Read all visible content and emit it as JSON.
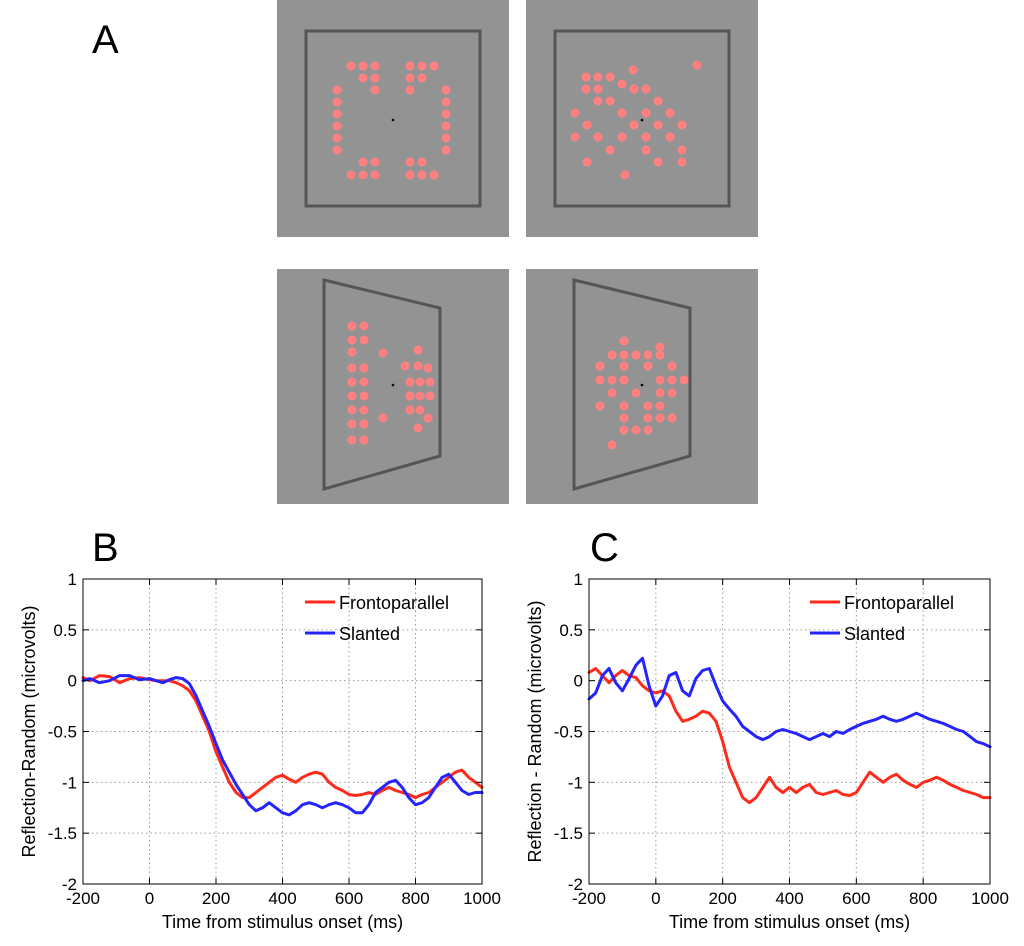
{
  "panels": {
    "a_label": "A",
    "b_label": "B",
    "c_label": "C"
  },
  "stimuli": {
    "background_color": "#939393",
    "frame_color": "#555555",
    "dot_color": "#ff8080",
    "fixation_color": "#000000",
    "items": [
      {
        "name": "frontoparallel-reflection",
        "orientation": "frontal",
        "symmetry": "reflection"
      },
      {
        "name": "frontoparallel-random",
        "orientation": "frontal",
        "symmetry": "random"
      },
      {
        "name": "slanted-reflection",
        "orientation": "slanted",
        "symmetry": "reflection"
      },
      {
        "name": "slanted-random",
        "orientation": "slanted",
        "symmetry": "random"
      }
    ]
  },
  "chart_data": [
    {
      "panel": "B",
      "type": "line",
      "xlabel": "Time from stimulus onset (ms)",
      "ylabel": "Reflection-Random (microvolts)",
      "xlim": [
        -200,
        1000
      ],
      "ylim": [
        -2,
        1
      ],
      "xticks": [
        -200,
        0,
        200,
        400,
        600,
        800,
        1000
      ],
      "yticks": [
        1,
        0.5,
        0,
        -0.5,
        -1,
        -1.5,
        -2
      ],
      "xtick_labels": [
        "-200",
        "0",
        "200",
        "400",
        "600",
        "800",
        "1000"
      ],
      "ytick_labels": [
        "1",
        "0.5",
        "0",
        "-0.5",
        "-1",
        "-1.5",
        "-2"
      ],
      "grid": true,
      "legend_position": "top-right",
      "series": [
        {
          "name": "Frontoparallel",
          "color": "#ff2a1a",
          "x": [
            -200,
            -180,
            -150,
            -120,
            -90,
            -60,
            -30,
            0,
            20,
            40,
            60,
            80,
            100,
            120,
            140,
            160,
            180,
            200,
            220,
            240,
            260,
            280,
            300,
            320,
            340,
            360,
            380,
            400,
            420,
            440,
            460,
            480,
            500,
            520,
            540,
            560,
            580,
            600,
            620,
            640,
            660,
            680,
            700,
            720,
            740,
            760,
            780,
            800,
            820,
            840,
            860,
            880,
            900,
            920,
            940,
            960,
            980,
            1000
          ],
          "y": [
            0.03,
            0.0,
            0.05,
            0.04,
            -0.02,
            0.02,
            0.03,
            0.01,
            0.0,
            0.0,
            0.0,
            -0.02,
            -0.05,
            -0.1,
            -0.2,
            -0.35,
            -0.5,
            -0.7,
            -0.85,
            -1.0,
            -1.1,
            -1.15,
            -1.15,
            -1.1,
            -1.05,
            -1.0,
            -0.95,
            -0.93,
            -0.97,
            -1.0,
            -0.95,
            -0.92,
            -0.9,
            -0.92,
            -1.0,
            -1.05,
            -1.08,
            -1.12,
            -1.13,
            -1.12,
            -1.1,
            -1.12,
            -1.08,
            -1.05,
            -1.08,
            -1.1,
            -1.12,
            -1.15,
            -1.12,
            -1.1,
            -1.05,
            -1.0,
            -0.95,
            -0.9,
            -0.88,
            -0.95,
            -1.0,
            -1.05
          ]
        },
        {
          "name": "Slanted",
          "color": "#2424ff",
          "x": [
            -200,
            -180,
            -150,
            -120,
            -90,
            -60,
            -30,
            0,
            20,
            40,
            60,
            80,
            100,
            120,
            140,
            160,
            180,
            200,
            220,
            240,
            260,
            280,
            300,
            320,
            340,
            360,
            380,
            400,
            420,
            440,
            460,
            480,
            500,
            520,
            540,
            560,
            580,
            600,
            620,
            640,
            660,
            680,
            700,
            720,
            740,
            760,
            780,
            800,
            820,
            840,
            860,
            880,
            900,
            920,
            940,
            960,
            980,
            1000
          ],
          "y": [
            0.0,
            0.02,
            -0.02,
            0.0,
            0.05,
            0.05,
            0.01,
            0.02,
            0.0,
            -0.02,
            0.01,
            0.03,
            0.02,
            -0.03,
            -0.15,
            -0.3,
            -0.45,
            -0.62,
            -0.78,
            -0.9,
            -1.02,
            -1.12,
            -1.22,
            -1.28,
            -1.25,
            -1.2,
            -1.25,
            -1.3,
            -1.32,
            -1.28,
            -1.22,
            -1.2,
            -1.22,
            -1.25,
            -1.22,
            -1.2,
            -1.22,
            -1.25,
            -1.3,
            -1.3,
            -1.22,
            -1.1,
            -1.05,
            -1.0,
            -0.98,
            -1.05,
            -1.15,
            -1.22,
            -1.2,
            -1.15,
            -1.05,
            -0.95,
            -0.92,
            -1.0,
            -1.08,
            -1.12,
            -1.1,
            -1.1
          ]
        }
      ]
    },
    {
      "panel": "C",
      "type": "line",
      "xlabel": "Time from stimulus onset (ms)",
      "ylabel": "Reflection - Random (microvolts)",
      "xlim": [
        -200,
        1000
      ],
      "ylim": [
        -2,
        1
      ],
      "xticks": [
        -200,
        0,
        200,
        400,
        600,
        800,
        1000
      ],
      "yticks": [
        1,
        0.5,
        0,
        -0.5,
        -1,
        -1.5,
        -2
      ],
      "xtick_labels": [
        "-200",
        "0",
        "200",
        "400",
        "600",
        "800",
        "1000"
      ],
      "ytick_labels": [
        "1",
        "0.5",
        "0",
        "-0.5",
        "-1",
        "-1.5",
        "-2"
      ],
      "grid": true,
      "legend_position": "top-right",
      "series": [
        {
          "name": "Frontoparallel",
          "color": "#ff2a1a",
          "x": [
            -200,
            -180,
            -160,
            -140,
            -120,
            -100,
            -80,
            -60,
            -40,
            -20,
            0,
            20,
            40,
            60,
            80,
            100,
            120,
            140,
            160,
            180,
            200,
            220,
            240,
            260,
            280,
            300,
            320,
            340,
            360,
            380,
            400,
            420,
            440,
            460,
            480,
            500,
            520,
            540,
            560,
            580,
            600,
            620,
            640,
            660,
            680,
            700,
            720,
            740,
            760,
            780,
            800,
            820,
            840,
            860,
            880,
            900,
            920,
            940,
            960,
            980,
            1000
          ],
          "y": [
            0.08,
            0.12,
            0.05,
            -0.02,
            0.05,
            0.1,
            0.05,
            0.03,
            -0.05,
            -0.1,
            -0.12,
            -0.1,
            -0.15,
            -0.3,
            -0.4,
            -0.38,
            -0.35,
            -0.3,
            -0.32,
            -0.4,
            -0.6,
            -0.85,
            -1.0,
            -1.15,
            -1.2,
            -1.15,
            -1.05,
            -0.95,
            -1.05,
            -1.1,
            -1.05,
            -1.1,
            -1.05,
            -1.02,
            -1.1,
            -1.12,
            -1.1,
            -1.08,
            -1.12,
            -1.13,
            -1.1,
            -1.0,
            -0.9,
            -0.95,
            -1.0,
            -0.95,
            -0.92,
            -0.98,
            -1.02,
            -1.05,
            -1.0,
            -0.98,
            -0.95,
            -0.98,
            -1.02,
            -1.05,
            -1.08,
            -1.1,
            -1.12,
            -1.15,
            -1.15
          ]
        },
        {
          "name": "Slanted",
          "color": "#2424ff",
          "x": [
            -200,
            -180,
            -160,
            -140,
            -120,
            -100,
            -80,
            -60,
            -40,
            -20,
            0,
            20,
            40,
            60,
            80,
            100,
            120,
            140,
            160,
            180,
            200,
            220,
            240,
            260,
            280,
            300,
            320,
            340,
            360,
            380,
            400,
            420,
            440,
            460,
            480,
            500,
            520,
            540,
            560,
            580,
            600,
            620,
            640,
            660,
            680,
            700,
            720,
            740,
            760,
            780,
            800,
            820,
            840,
            860,
            880,
            900,
            920,
            940,
            960,
            980,
            1000
          ],
          "y": [
            -0.18,
            -0.12,
            0.05,
            0.12,
            -0.02,
            -0.1,
            0.02,
            0.15,
            0.22,
            -0.05,
            -0.25,
            -0.15,
            0.05,
            0.08,
            -0.1,
            -0.15,
            0.02,
            0.1,
            0.12,
            -0.05,
            -0.2,
            -0.28,
            -0.35,
            -0.45,
            -0.5,
            -0.55,
            -0.58,
            -0.55,
            -0.5,
            -0.48,
            -0.5,
            -0.52,
            -0.55,
            -0.58,
            -0.55,
            -0.52,
            -0.55,
            -0.5,
            -0.52,
            -0.48,
            -0.45,
            -0.42,
            -0.4,
            -0.38,
            -0.35,
            -0.38,
            -0.4,
            -0.38,
            -0.35,
            -0.32,
            -0.35,
            -0.38,
            -0.4,
            -0.42,
            -0.45,
            -0.48,
            -0.5,
            -0.55,
            -0.6,
            -0.62,
            -0.65
          ]
        }
      ]
    }
  ]
}
